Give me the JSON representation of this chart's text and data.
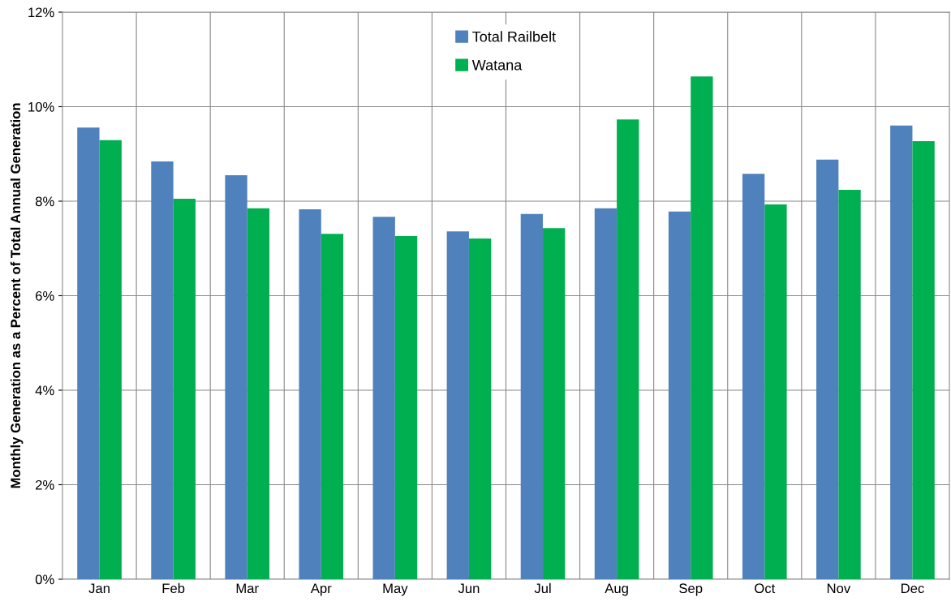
{
  "chart_data": {
    "type": "bar",
    "ylabel": "Monthly Generation as a Percent of Total Annual Generation",
    "categories": [
      "Jan",
      "Feb",
      "Mar",
      "Apr",
      "May",
      "Jun",
      "Jul",
      "Aug",
      "Sep",
      "Oct",
      "Nov",
      "Dec"
    ],
    "series": [
      {
        "name": "Total Railbelt",
        "color": "#4f81bd",
        "values": [
          9.56,
          8.84,
          8.55,
          7.83,
          7.67,
          7.36,
          7.73,
          7.85,
          7.78,
          8.58,
          8.88,
          9.6
        ]
      },
      {
        "name": "Watana",
        "color": "#00b050",
        "values": [
          9.29,
          8.05,
          7.85,
          7.31,
          7.26,
          7.21,
          7.43,
          9.73,
          10.64,
          7.93,
          8.24,
          9.27
        ]
      }
    ],
    "ylim": [
      0,
      12
    ],
    "yticks": [
      {
        "value": 0,
        "label": "0%"
      },
      {
        "value": 2,
        "label": "2%"
      },
      {
        "value": 4,
        "label": "4%"
      },
      {
        "value": 6,
        "label": "6%"
      },
      {
        "value": 8,
        "label": "8%"
      },
      {
        "value": 10,
        "label": "10%"
      },
      {
        "value": 12,
        "label": "12%"
      }
    ],
    "grid": true,
    "legend": "top"
  }
}
